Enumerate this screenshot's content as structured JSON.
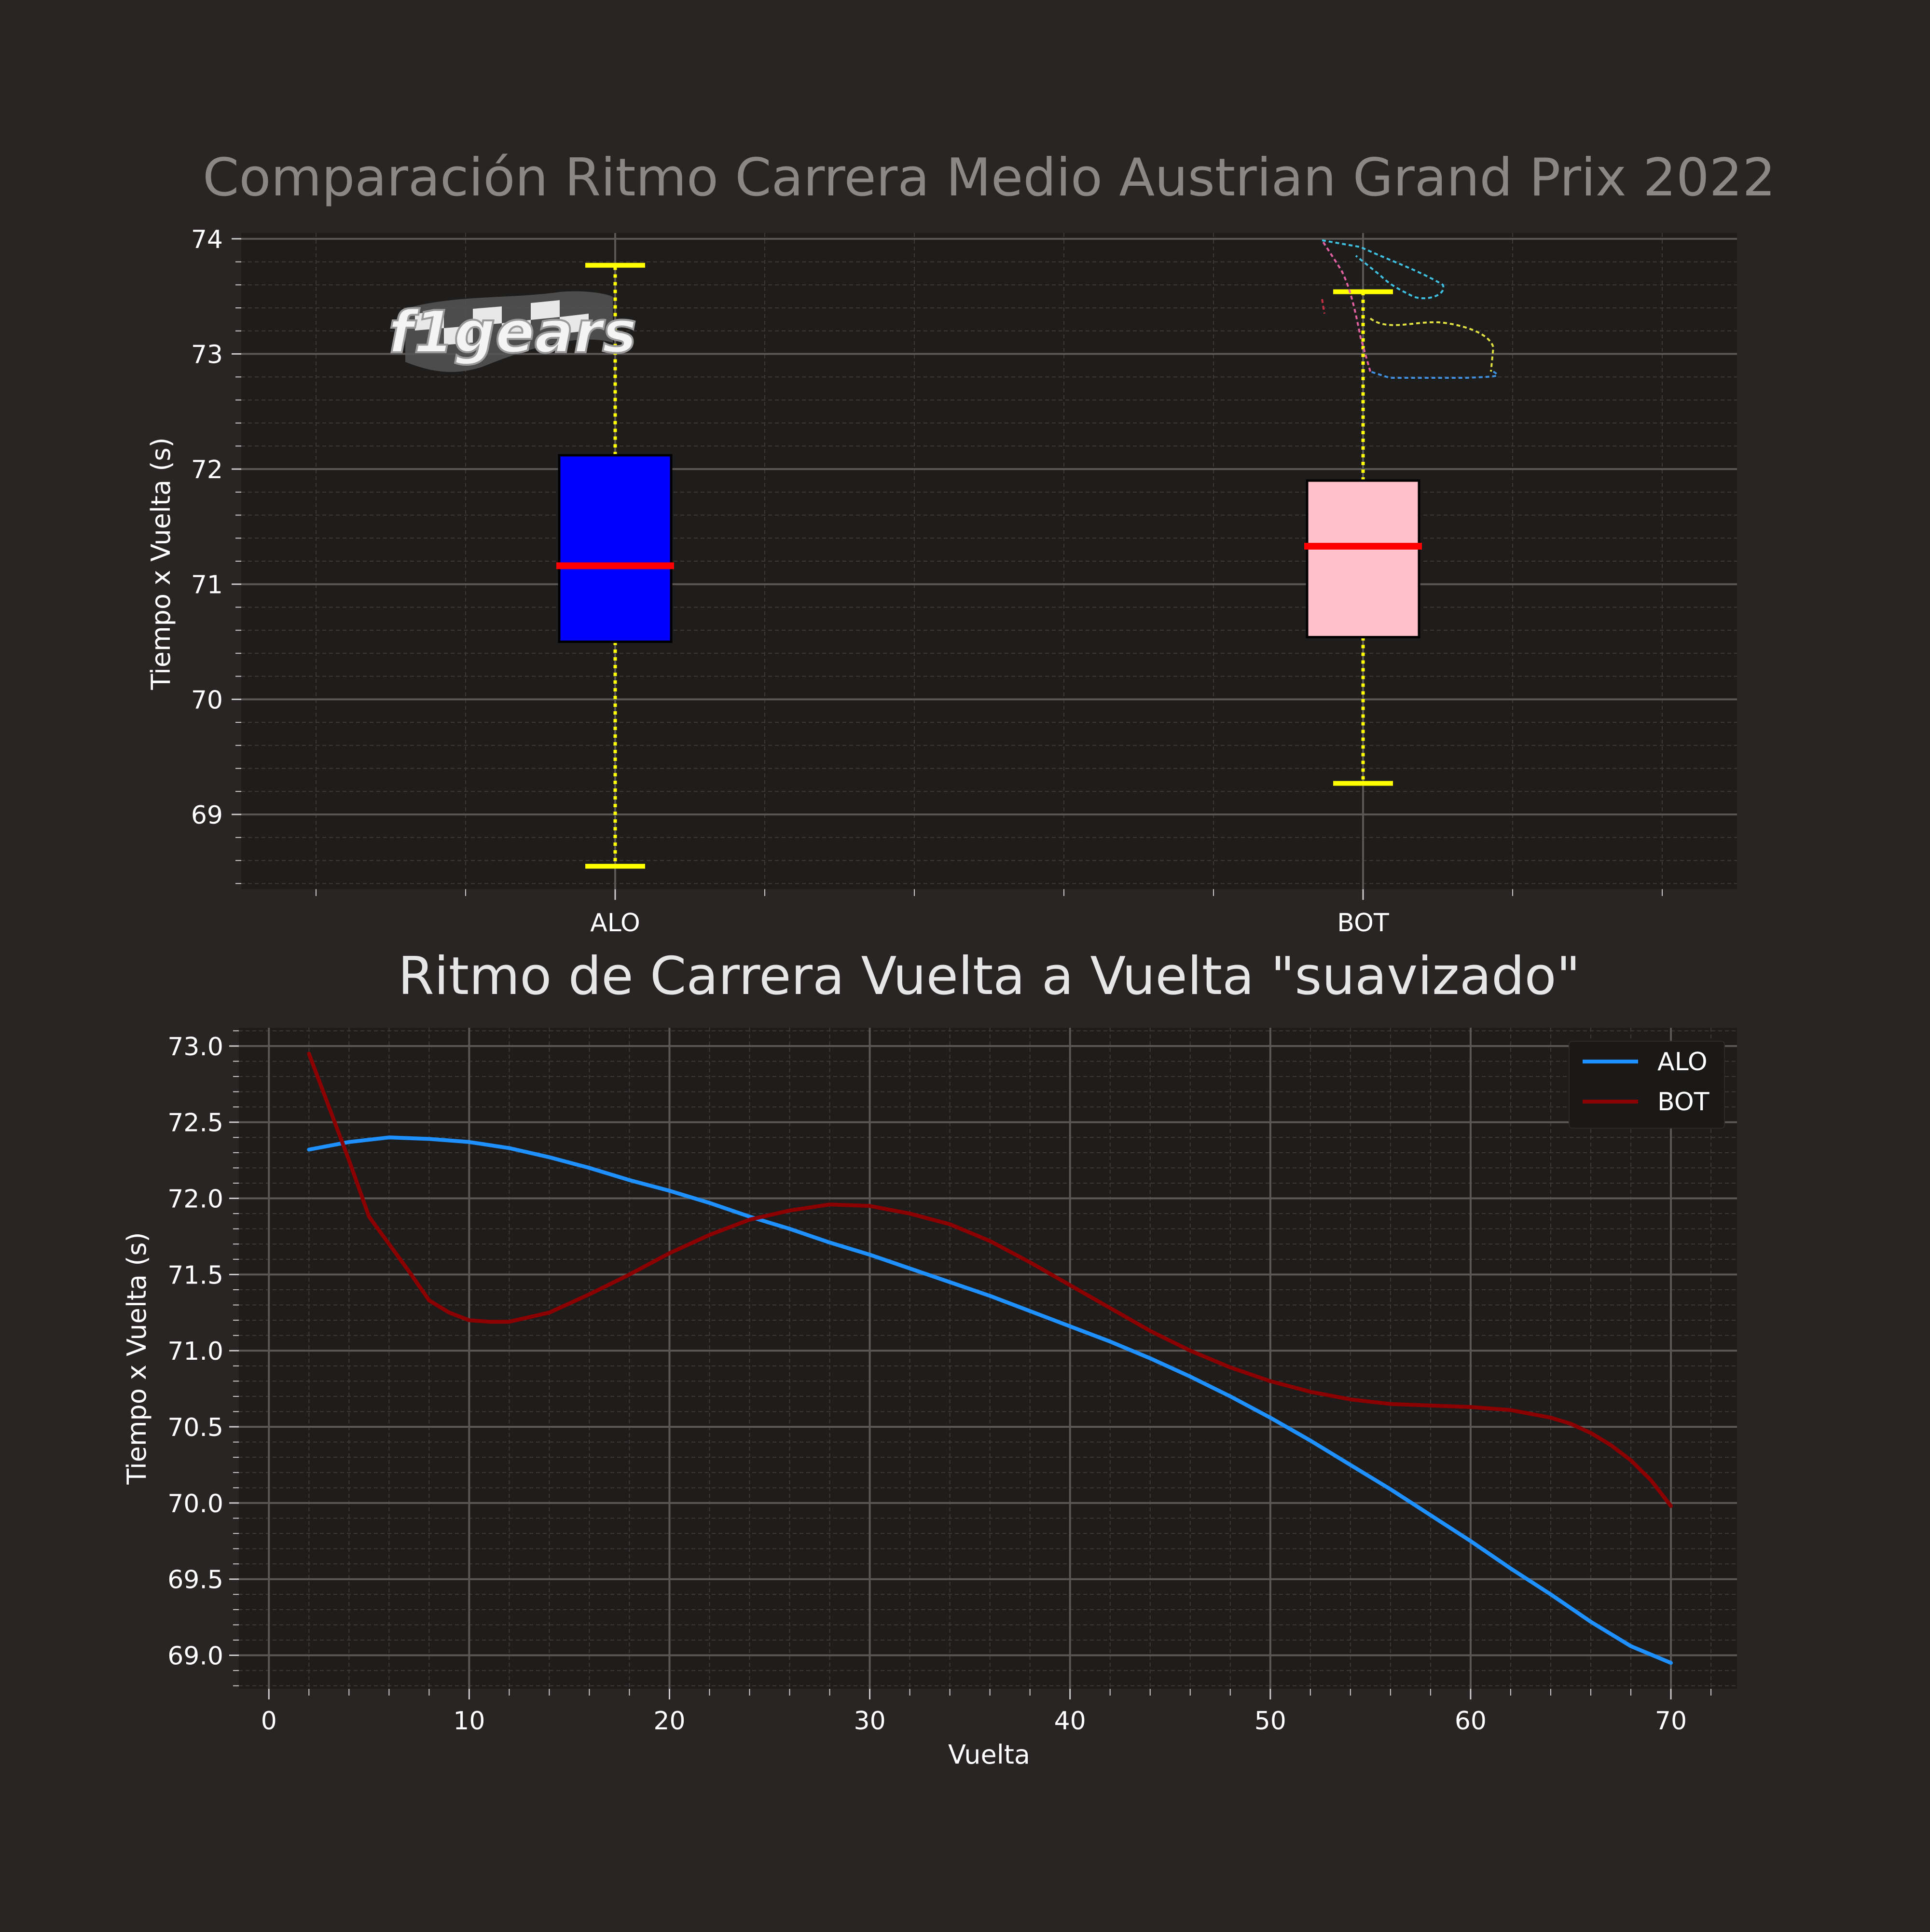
{
  "colors": {
    "figure_bg": "#282524",
    "axes_bg": "#1e1d1c",
    "grid_major": "#5a5756",
    "grid_minor": "#3c3a39",
    "text": "#ffffff",
    "title_top": "#8a8786",
    "title_bottom": "#e6e6e6"
  },
  "logo": {
    "text": "f1gears",
    "icon": "checkered-flag-logo"
  },
  "circuit_icon": "circuit-map-icon",
  "chart_data": [
    {
      "type": "box",
      "title": "Comparación Ritmo Carrera Medio Austrian Grand Prix 2022",
      "ylabel": "Tiempo x Vuelta (s)",
      "xlabel": "",
      "ylim": [
        68.35,
        74.05
      ],
      "yticks": [
        69,
        70,
        71,
        72,
        73,
        74
      ],
      "grid": true,
      "boxes": [
        {
          "label": "ALO",
          "whisker_low": 68.55,
          "q1": 70.5,
          "median": 71.16,
          "q3": 72.12,
          "whisker_high": 73.77,
          "color": "#0000ff",
          "median_color": "#ff0000",
          "whisker_color": "#ffff00"
        },
        {
          "label": "BOT",
          "whisker_low": 69.27,
          "q1": 70.54,
          "median": 71.33,
          "q3": 71.9,
          "whisker_high": 73.54,
          "color": "#ffc0cb",
          "median_color": "#ff0000",
          "whisker_color": "#ffff00"
        }
      ]
    },
    {
      "type": "line",
      "title": "Ritmo de Carrera Vuelta a Vuelta \"suavizado\"",
      "xlabel": "Vuelta",
      "ylabel": "Tiempo x Vuelta (s)",
      "xlim": [
        -1.5,
        73.3
      ],
      "ylim": [
        68.78,
        73.12
      ],
      "xticks": [
        0,
        10,
        20,
        30,
        40,
        50,
        60,
        70
      ],
      "yticks": [
        "69.0",
        "69.5",
        "70.0",
        "70.5",
        "71.0",
        "71.5",
        "72.0",
        "72.5",
        "73.0"
      ],
      "grid": true,
      "legend": "top-right",
      "series": [
        {
          "name": "ALO",
          "color": "#1e90ff",
          "points": [
            [
              2,
              72.32
            ],
            [
              4,
              72.37
            ],
            [
              6,
              72.4
            ],
            [
              8,
              72.39
            ],
            [
              10,
              72.37
            ],
            [
              12,
              72.33
            ],
            [
              14,
              72.27
            ],
            [
              16,
              72.2
            ],
            [
              18,
              72.12
            ],
            [
              20,
              72.05
            ],
            [
              22,
              71.97
            ],
            [
              24,
              71.88
            ],
            [
              26,
              71.8
            ],
            [
              28,
              71.71
            ],
            [
              30,
              71.63
            ],
            [
              32,
              71.54
            ],
            [
              34,
              71.45
            ],
            [
              36,
              71.36
            ],
            [
              38,
              71.26
            ],
            [
              40,
              71.16
            ],
            [
              42,
              71.06
            ],
            [
              44,
              70.95
            ],
            [
              46,
              70.83
            ],
            [
              48,
              70.7
            ],
            [
              50,
              70.56
            ],
            [
              52,
              70.41
            ],
            [
              54,
              70.25
            ],
            [
              56,
              70.09
            ],
            [
              58,
              69.92
            ],
            [
              60,
              69.75
            ],
            [
              62,
              69.57
            ],
            [
              64,
              69.4
            ],
            [
              66,
              69.22
            ],
            [
              68,
              69.06
            ],
            [
              70,
              68.95
            ]
          ]
        },
        {
          "name": "BOT",
          "color": "#8b0000",
          "points": [
            [
              2,
              72.95
            ],
            [
              3,
              72.6
            ],
            [
              4,
              72.25
            ],
            [
              5,
              71.88
            ],
            [
              6,
              71.7
            ],
            [
              7,
              71.52
            ],
            [
              8,
              71.33
            ],
            [
              9,
              71.25
            ],
            [
              10,
              71.2
            ],
            [
              11,
              71.19
            ],
            [
              12,
              71.19
            ],
            [
              14,
              71.25
            ],
            [
              16,
              71.37
            ],
            [
              18,
              71.5
            ],
            [
              20,
              71.64
            ],
            [
              22,
              71.76
            ],
            [
              24,
              71.86
            ],
            [
              26,
              71.92
            ],
            [
              28,
              71.96
            ],
            [
              30,
              71.95
            ],
            [
              32,
              71.9
            ],
            [
              34,
              71.83
            ],
            [
              36,
              71.72
            ],
            [
              38,
              71.58
            ],
            [
              40,
              71.43
            ],
            [
              42,
              71.28
            ],
            [
              44,
              71.13
            ],
            [
              46,
              71.0
            ],
            [
              48,
              70.89
            ],
            [
              50,
              70.8
            ],
            [
              52,
              70.73
            ],
            [
              54,
              70.68
            ],
            [
              56,
              70.65
            ],
            [
              58,
              70.64
            ],
            [
              60,
              70.63
            ],
            [
              62,
              70.61
            ],
            [
              64,
              70.56
            ],
            [
              65,
              70.52
            ],
            [
              66,
              70.46
            ],
            [
              67,
              70.38
            ],
            [
              68,
              70.28
            ],
            [
              69,
              70.15
            ],
            [
              70,
              69.98
            ]
          ]
        }
      ]
    }
  ]
}
